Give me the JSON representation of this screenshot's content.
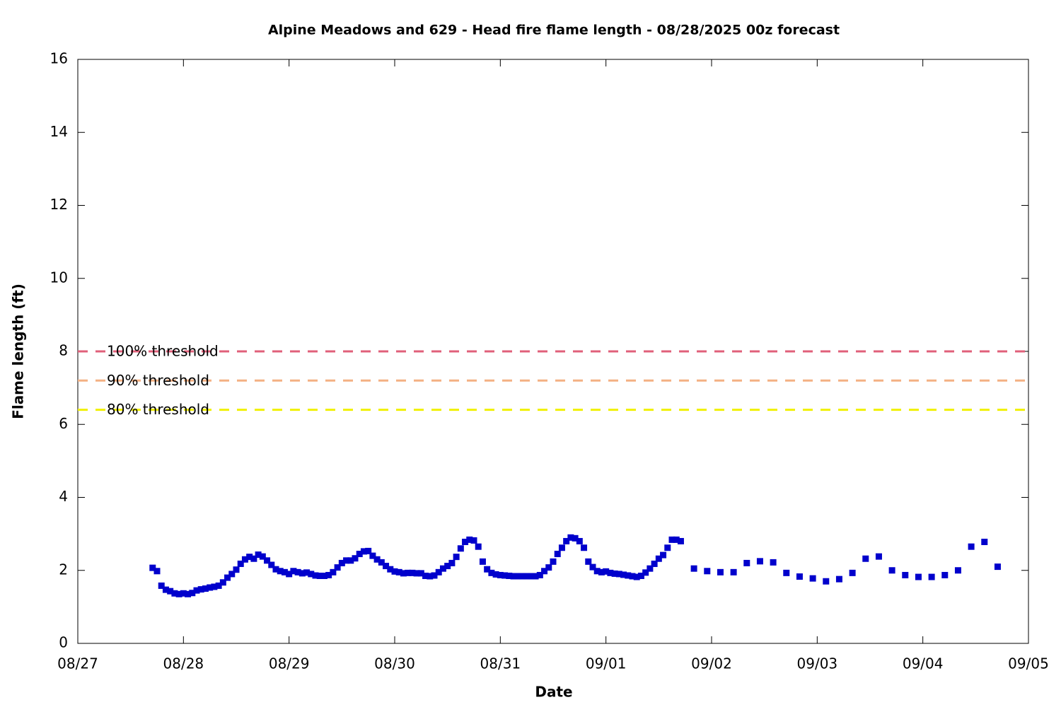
{
  "chart_data": {
    "type": "scatter",
    "title": "Alpine Meadows and 629 - Head fire flame length - 08/28/2025 00z forecast",
    "x_label": "Date",
    "y_label": "Flame length (ft)",
    "color": "#0000cc",
    "xlim": [
      0,
      216
    ],
    "xticks": [
      {
        "value": 0,
        "label": "08/27"
      },
      {
        "value": 24,
        "label": "08/28"
      },
      {
        "value": 48,
        "label": "08/29"
      },
      {
        "value": 72,
        "label": "08/30"
      },
      {
        "value": 96,
        "label": "08/31"
      },
      {
        "value": 120,
        "label": "09/01"
      },
      {
        "value": 144,
        "label": "09/02"
      },
      {
        "value": 168,
        "label": "09/03"
      },
      {
        "value": 192,
        "label": "09/04"
      },
      {
        "value": 216,
        "label": "09/05"
      }
    ],
    "ylim": [
      0,
      16
    ],
    "yticks": [
      0,
      2,
      4,
      6,
      8,
      10,
      12,
      14,
      16
    ],
    "thresholds": [
      {
        "name": "100% threshold",
        "value": 8,
        "color": "#e0607a"
      },
      {
        "name": "90% threshold",
        "value": 7.2,
        "color": "#f4b183"
      },
      {
        "name": "80% threshold",
        "value": 6.4,
        "color": "#f0f000"
      }
    ],
    "x": [
      17,
      18,
      19,
      20,
      21,
      22,
      23,
      24,
      25,
      26,
      27,
      28,
      29,
      30,
      31,
      32,
      33,
      34,
      35,
      36,
      37,
      38,
      39,
      40,
      41,
      42,
      43,
      44,
      45,
      46,
      47,
      48,
      49,
      50,
      51,
      52,
      53,
      54,
      55,
      56,
      57,
      58,
      59,
      60,
      61,
      62,
      63,
      64,
      65,
      66,
      67,
      68,
      69,
      70,
      71,
      72,
      73,
      74,
      75,
      76,
      77,
      78,
      79,
      80,
      81,
      82,
      83,
      84,
      85,
      86,
      87,
      88,
      89,
      90,
      91,
      92,
      93,
      94,
      95,
      96,
      97,
      98,
      99,
      100,
      101,
      102,
      103,
      104,
      105,
      106,
      107,
      108,
      109,
      110,
      111,
      112,
      113,
      114,
      115,
      116,
      117,
      118,
      119,
      120,
      121,
      122,
      123,
      124,
      125,
      126,
      127,
      128,
      129,
      130,
      131,
      132,
      133,
      134,
      135,
      136,
      137,
      140,
      143,
      146,
      149,
      152,
      155,
      158,
      161,
      164,
      167,
      170,
      173,
      176,
      179,
      182,
      185,
      188,
      191,
      194,
      197,
      200,
      203,
      206,
      209
    ],
    "values": [
      2.07,
      1.98,
      1.58,
      1.47,
      1.43,
      1.37,
      1.35,
      1.37,
      1.35,
      1.38,
      1.45,
      1.48,
      1.5,
      1.53,
      1.55,
      1.58,
      1.67,
      1.8,
      1.9,
      2.02,
      2.18,
      2.3,
      2.37,
      2.32,
      2.43,
      2.38,
      2.27,
      2.15,
      2.03,
      1.98,
      1.95,
      1.9,
      1.98,
      1.95,
      1.92,
      1.94,
      1.9,
      1.86,
      1.85,
      1.85,
      1.87,
      1.95,
      2.08,
      2.2,
      2.27,
      2.27,
      2.33,
      2.45,
      2.52,
      2.53,
      2.4,
      2.3,
      2.22,
      2.12,
      2.03,
      1.97,
      1.95,
      1.92,
      1.93,
      1.93,
      1.92,
      1.92,
      1.85,
      1.84,
      1.86,
      1.95,
      2.05,
      2.12,
      2.2,
      2.37,
      2.6,
      2.78,
      2.84,
      2.82,
      2.65,
      2.24,
      2.03,
      1.93,
      1.89,
      1.87,
      1.86,
      1.85,
      1.84,
      1.84,
      1.84,
      1.84,
      1.84,
      1.84,
      1.87,
      1.98,
      2.08,
      2.24,
      2.45,
      2.62,
      2.8,
      2.9,
      2.88,
      2.8,
      2.62,
      2.24,
      2.09,
      1.98,
      1.95,
      1.97,
      1.93,
      1.91,
      1.9,
      1.88,
      1.86,
      1.84,
      1.82,
      1.85,
      1.94,
      2.05,
      2.18,
      2.32,
      2.42,
      2.62,
      2.84,
      2.84,
      2.8,
      2.05,
      1.98,
      1.95,
      1.95,
      2.2,
      2.25,
      2.22,
      1.93,
      1.83,
      1.78,
      1.7,
      1.76,
      1.93,
      2.32,
      2.38,
      2.0,
      1.87,
      1.82,
      1.82,
      1.87,
      2.0,
      2.65,
      2.78,
      2.1
    ]
  }
}
